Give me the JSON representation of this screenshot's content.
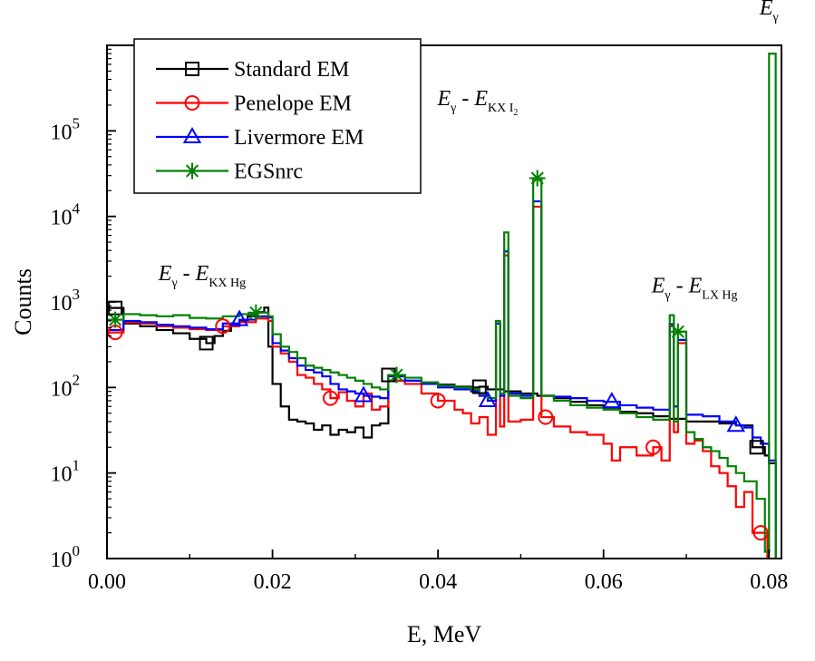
{
  "chart_data": {
    "type": "line",
    "style": "step-histogram",
    "xlabel": "E, MeV",
    "ylabel": "Counts",
    "xlim": [
      0,
      0.0815
    ],
    "ylim": [
      1,
      1000000
    ],
    "yscale": "log",
    "xticks": [
      0.0,
      0.02,
      0.04,
      0.06,
      0.08
    ],
    "xtick_labels": [
      "0.00",
      "0.02",
      "0.04",
      "0.06",
      "0.08"
    ],
    "yticks": [
      1,
      10,
      100,
      1000,
      10000,
      100000
    ],
    "ytick_labels": [
      {
        "base": "10",
        "exp": "0"
      },
      {
        "base": "10",
        "exp": "1"
      },
      {
        "base": "10",
        "exp": "2"
      },
      {
        "base": "10",
        "exp": "3"
      },
      {
        "base": "10",
        "exp": "4"
      },
      {
        "base": "10",
        "exp": "5"
      }
    ],
    "legend_position": "top-left",
    "series": [
      {
        "name": "Standard EM",
        "color": "#000000",
        "marker": "square",
        "points": [
          [
            0,
            850
          ],
          [
            0.002,
            560
          ],
          [
            0.004,
            520
          ],
          [
            0.006,
            470
          ],
          [
            0.008,
            430
          ],
          [
            0.01,
            370
          ],
          [
            0.012,
            330
          ],
          [
            0.013,
            400
          ],
          [
            0.014,
            460
          ],
          [
            0.015,
            530
          ],
          [
            0.016,
            600
          ],
          [
            0.017,
            680
          ],
          [
            0.018,
            760
          ],
          [
            0.019,
            860
          ],
          [
            0.0195,
            300
          ],
          [
            0.02,
            110
          ],
          [
            0.021,
            60
          ],
          [
            0.022,
            42
          ],
          [
            0.023,
            40
          ],
          [
            0.024,
            38
          ],
          [
            0.025,
            32
          ],
          [
            0.026,
            36
          ],
          [
            0.027,
            28
          ],
          [
            0.028,
            32
          ],
          [
            0.029,
            30
          ],
          [
            0.03,
            34
          ],
          [
            0.031,
            26
          ],
          [
            0.032,
            36
          ],
          [
            0.033,
            38
          ],
          [
            0.034,
            140
          ],
          [
            0.036,
            120
          ],
          [
            0.038,
            110
          ],
          [
            0.04,
            108
          ],
          [
            0.042,
            102
          ],
          [
            0.044,
            100
          ],
          [
            0.045,
            102
          ],
          [
            0.046,
            95
          ],
          [
            0.048,
            90
          ],
          [
            0.05,
            85
          ],
          [
            0.052,
            80
          ],
          [
            0.054,
            75
          ],
          [
            0.056,
            68
          ],
          [
            0.058,
            62
          ],
          [
            0.06,
            58
          ],
          [
            0.062,
            52
          ],
          [
            0.064,
            50
          ],
          [
            0.066,
            46
          ],
          [
            0.068,
            43
          ],
          [
            0.07,
            40
          ],
          [
            0.072,
            40
          ],
          [
            0.074,
            38
          ],
          [
            0.076,
            36
          ],
          [
            0.078,
            20
          ],
          [
            0.0795,
            16
          ],
          [
            0.08,
            13
          ]
        ],
        "markers_x": [
          0.001,
          0.012,
          0.034,
          0.045,
          0.0785
        ]
      },
      {
        "name": "Penelope EM",
        "color": "#ff0000",
        "marker": "circle",
        "points": [
          [
            0,
            440
          ],
          [
            0.002,
            580
          ],
          [
            0.004,
            560
          ],
          [
            0.006,
            520
          ],
          [
            0.008,
            500
          ],
          [
            0.01,
            480
          ],
          [
            0.012,
            470
          ],
          [
            0.014,
            520
          ],
          [
            0.016,
            580
          ],
          [
            0.018,
            640
          ],
          [
            0.0195,
            600
          ],
          [
            0.02,
            300
          ],
          [
            0.021,
            250
          ],
          [
            0.022,
            200
          ],
          [
            0.023,
            140
          ],
          [
            0.024,
            130
          ],
          [
            0.025,
            110
          ],
          [
            0.026,
            95
          ],
          [
            0.027,
            75
          ],
          [
            0.028,
            88
          ],
          [
            0.029,
            70
          ],
          [
            0.03,
            60
          ],
          [
            0.031,
            85
          ],
          [
            0.032,
            55
          ],
          [
            0.033,
            60
          ],
          [
            0.034,
            120
          ],
          [
            0.036,
            110
          ],
          [
            0.038,
            85
          ],
          [
            0.04,
            70
          ],
          [
            0.042,
            55
          ],
          [
            0.043,
            50
          ],
          [
            0.044,
            38
          ],
          [
            0.045,
            45
          ],
          [
            0.046,
            28
          ],
          [
            0.047,
            560
          ],
          [
            0.0475,
            35
          ],
          [
            0.048,
            3500
          ],
          [
            0.0485,
            40
          ],
          [
            0.05,
            42
          ],
          [
            0.0515,
            13000
          ],
          [
            0.0525,
            45
          ],
          [
            0.054,
            35
          ],
          [
            0.056,
            30
          ],
          [
            0.058,
            28
          ],
          [
            0.06,
            22
          ],
          [
            0.061,
            14
          ],
          [
            0.062,
            20
          ],
          [
            0.064,
            16
          ],
          [
            0.066,
            20
          ],
          [
            0.067,
            14
          ],
          [
            0.068,
            520
          ],
          [
            0.0685,
            30
          ],
          [
            0.069,
            330
          ],
          [
            0.07,
            22
          ],
          [
            0.071,
            24
          ],
          [
            0.072,
            18
          ],
          [
            0.073,
            12
          ],
          [
            0.074,
            10
          ],
          [
            0.075,
            7
          ],
          [
            0.076,
            4
          ],
          [
            0.077,
            6
          ],
          [
            0.078,
            2
          ],
          [
            0.079,
            2
          ]
        ],
        "markers_x": [
          0.001,
          0.014,
          0.027,
          0.04,
          0.053,
          0.066,
          0.079
        ]
      },
      {
        "name": "Livermore EM",
        "color": "#0000ff",
        "marker": "triangle",
        "points": [
          [
            0,
            470
          ],
          [
            0.002,
            600
          ],
          [
            0.004,
            580
          ],
          [
            0.006,
            540
          ],
          [
            0.008,
            520
          ],
          [
            0.01,
            500
          ],
          [
            0.012,
            480
          ],
          [
            0.014,
            560
          ],
          [
            0.016,
            620
          ],
          [
            0.018,
            680
          ],
          [
            0.0195,
            660
          ],
          [
            0.02,
            330
          ],
          [
            0.021,
            270
          ],
          [
            0.022,
            220
          ],
          [
            0.023,
            180
          ],
          [
            0.024,
            160
          ],
          [
            0.025,
            150
          ],
          [
            0.026,
            135
          ],
          [
            0.027,
            110
          ],
          [
            0.028,
            95
          ],
          [
            0.029,
            90
          ],
          [
            0.03,
            85
          ],
          [
            0.031,
            80
          ],
          [
            0.032,
            78
          ],
          [
            0.033,
            75
          ],
          [
            0.034,
            135
          ],
          [
            0.036,
            120
          ],
          [
            0.038,
            110
          ],
          [
            0.04,
            100
          ],
          [
            0.042,
            95
          ],
          [
            0.044,
            90
          ],
          [
            0.045,
            80
          ],
          [
            0.046,
            70
          ],
          [
            0.047,
            560
          ],
          [
            0.0475,
            80
          ],
          [
            0.048,
            3900
          ],
          [
            0.0485,
            85
          ],
          [
            0.05,
            80
          ],
          [
            0.0515,
            15000
          ],
          [
            0.0525,
            80
          ],
          [
            0.054,
            78
          ],
          [
            0.056,
            75
          ],
          [
            0.058,
            70
          ],
          [
            0.06,
            68
          ],
          [
            0.062,
            62
          ],
          [
            0.064,
            58
          ],
          [
            0.066,
            55
          ],
          [
            0.068,
            550
          ],
          [
            0.0685,
            60
          ],
          [
            0.069,
            360
          ],
          [
            0.07,
            48
          ],
          [
            0.072,
            46
          ],
          [
            0.074,
            40
          ],
          [
            0.076,
            36
          ],
          [
            0.077,
            34
          ],
          [
            0.078,
            26
          ],
          [
            0.079,
            22
          ],
          [
            0.08,
            14
          ]
        ],
        "markers_x": [
          0.016,
          0.031,
          0.046,
          0.061,
          0.076
        ]
      },
      {
        "name": "EGSnrc",
        "color": "#008000",
        "marker": "star",
        "points": [
          [
            0,
            620
          ],
          [
            0.002,
            720
          ],
          [
            0.004,
            700
          ],
          [
            0.006,
            680
          ],
          [
            0.008,
            700
          ],
          [
            0.01,
            650
          ],
          [
            0.012,
            640
          ],
          [
            0.014,
            680
          ],
          [
            0.016,
            720
          ],
          [
            0.018,
            750
          ],
          [
            0.0195,
            680
          ],
          [
            0.02,
            420
          ],
          [
            0.021,
            300
          ],
          [
            0.022,
            260
          ],
          [
            0.023,
            220
          ],
          [
            0.024,
            180
          ],
          [
            0.025,
            170
          ],
          [
            0.026,
            160
          ],
          [
            0.027,
            150
          ],
          [
            0.028,
            140
          ],
          [
            0.029,
            130
          ],
          [
            0.03,
            120
          ],
          [
            0.031,
            110
          ],
          [
            0.032,
            100
          ],
          [
            0.033,
            95
          ],
          [
            0.034,
            140
          ],
          [
            0.036,
            130
          ],
          [
            0.038,
            115
          ],
          [
            0.04,
            105
          ],
          [
            0.042,
            100
          ],
          [
            0.044,
            95
          ],
          [
            0.045,
            85
          ],
          [
            0.046,
            75
          ],
          [
            0.047,
            600
          ],
          [
            0.0475,
            85
          ],
          [
            0.048,
            6500
          ],
          [
            0.0485,
            80
          ],
          [
            0.05,
            75
          ],
          [
            0.0515,
            28000
          ],
          [
            0.0525,
            80
          ],
          [
            0.054,
            70
          ],
          [
            0.056,
            62
          ],
          [
            0.058,
            58
          ],
          [
            0.06,
            55
          ],
          [
            0.062,
            50
          ],
          [
            0.064,
            45
          ],
          [
            0.066,
            42
          ],
          [
            0.068,
            700
          ],
          [
            0.0685,
            40
          ],
          [
            0.069,
            450
          ],
          [
            0.07,
            30
          ],
          [
            0.071,
            25
          ],
          [
            0.072,
            20
          ],
          [
            0.073,
            18
          ],
          [
            0.074,
            15
          ],
          [
            0.075,
            12
          ],
          [
            0.076,
            10
          ],
          [
            0.077,
            8
          ],
          [
            0.0785,
            5
          ],
          [
            0.0795,
            1.2
          ],
          [
            0.08,
            800000
          ]
        ],
        "markers_x": [
          0.001,
          0.018,
          0.035,
          0.052,
          0.069
        ]
      }
    ],
    "annotations": [
      {
        "x": 0.0115,
        "y": 1800,
        "main": "E",
        "sub1": "γ",
        "mid": " - ",
        "main2": "E",
        "sub2": "KX Hg"
      },
      {
        "x": 0.0448,
        "y": 200000,
        "main": "E",
        "sub1": "γ",
        "mid": " - ",
        "main2": "E",
        "sub2": "KX I",
        "sub3": "2"
      },
      {
        "x": 0.071,
        "y": 1300,
        "main": "E",
        "sub1": "γ",
        "mid": " - ",
        "main2": "E",
        "sub2": "LX Hg"
      },
      {
        "x": 0.08,
        "y": 2300000,
        "main": "E",
        "sub1": "γ"
      }
    ]
  }
}
